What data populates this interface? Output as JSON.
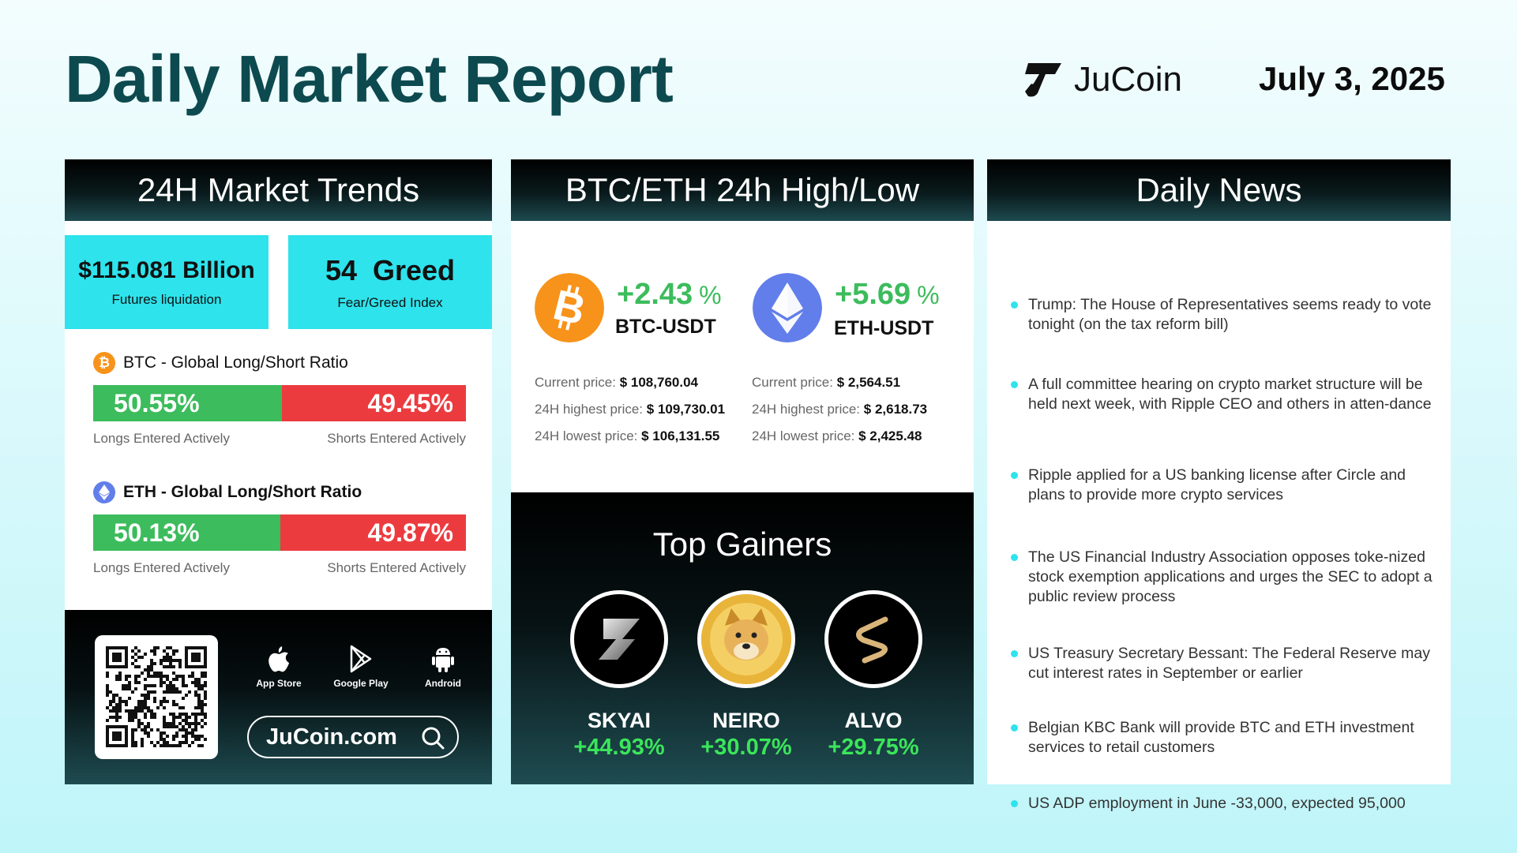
{
  "header": {
    "title": "Daily Market Report",
    "brand": "JuCoin",
    "date": "July 3, 2025"
  },
  "trends": {
    "heading": "24H Market Trends",
    "liquidation": {
      "value": "$115.081 Billion",
      "label": "Futures liquidation"
    },
    "fear_greed": {
      "value": "54  Greed",
      "label": "Fear/Greed Index"
    },
    "btc": {
      "title": "BTC - Global Long/Short Ratio",
      "long": "50.55%",
      "short": "49.45%",
      "long_fraction": 0.5055,
      "long_label": "Longs Entered Actively",
      "short_label": "Shorts Entered Actively"
    },
    "eth": {
      "title": "ETH - Global Long/Short Ratio",
      "long": "50.13%",
      "short": "49.87%",
      "long_fraction": 0.5013,
      "long_label": "Longs Entered Actively",
      "short_label": "Shorts Entered Actively"
    },
    "footer": {
      "stores": [
        "App Store",
        "Google Play",
        "Android"
      ],
      "site": "JuCoin.com"
    }
  },
  "highlow": {
    "heading": "BTC/ETH 24h High/Low",
    "btc": {
      "change": "+2.43",
      "pct": "%",
      "pair": "BTC-USDT",
      "current_label": "Current price:",
      "current": "$ 108,760.04",
      "high_label": "24H highest price:",
      "high": "$ 109,730.01",
      "low_label": "24H lowest price:",
      "low": "$ 106,131.55"
    },
    "eth": {
      "change": "+5.69",
      "pct": "%",
      "pair": "ETH-USDT",
      "current_label": "Current price:",
      "current": "$ 2,564.51",
      "high_label": "24H highest price:",
      "high": "$ 2,618.73",
      "low_label": "24H lowest price:",
      "low": "$ 2,425.48"
    },
    "gainers_title": "Top Gainers",
    "gainers": [
      {
        "name": "SKYAI",
        "change": "+44.93%"
      },
      {
        "name": "NEIRO",
        "change": "+30.07%"
      },
      {
        "name": "ALVO",
        "change": "+29.75%"
      }
    ]
  },
  "news": {
    "heading": "Daily News",
    "items": [
      "Trump: The House of Representatives seems ready to vote tonight (on the tax reform bill)",
      "A full committee hearing on crypto market structure will be held next week, with Ripple CEO and others in atten-dance",
      "Ripple applied for a US banking license after Circle and plans to provide more crypto services",
      "The US Financial Industry Association opposes toke-nized stock exemption applications and urges the SEC to adopt a public review process",
      "US Treasury Secretary Bessant: The Federal Reserve may cut interest rates in September or earlier",
      "Belgian KBC Bank will provide BTC and ETH investment services to retail customers",
      "US ADP employment in June -33,000, expected 95,000"
    ]
  },
  "colors": {
    "title": "#0d4a4f",
    "accent": "#2ee3ec",
    "long": "#3cbc5c",
    "short": "#ec3b3f",
    "gain": "#3be55a",
    "btc": "#f7931a",
    "eth": "#627eea"
  }
}
